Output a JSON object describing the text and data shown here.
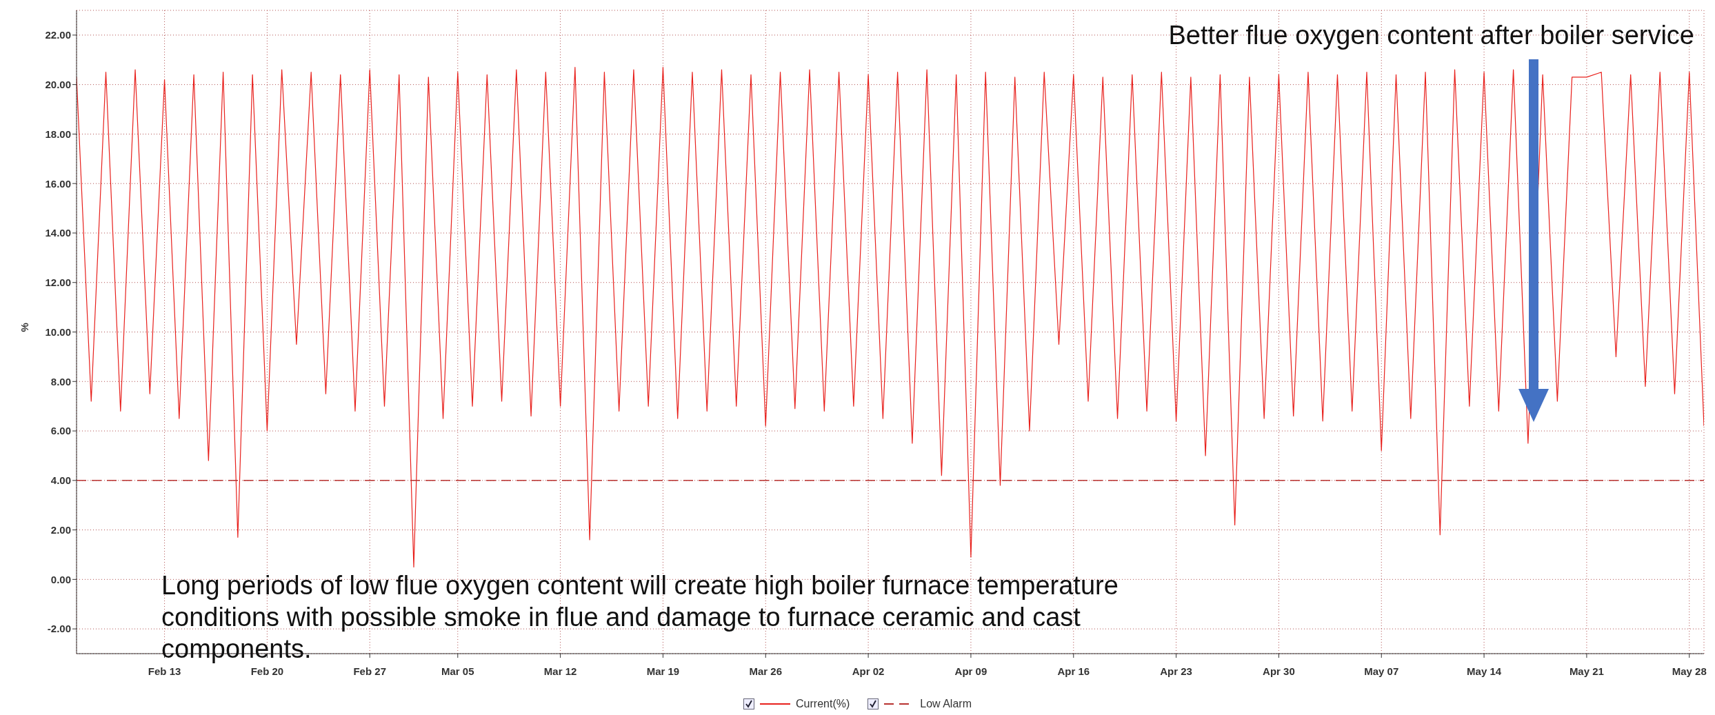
{
  "chart_data": {
    "type": "line",
    "x": [
      "--02-07",
      "--02-08",
      "--02-09",
      "--02-10",
      "--02-11",
      "--02-12",
      "--02-13",
      "--02-14",
      "--02-15",
      "--02-16",
      "--02-17",
      "--02-18",
      "--02-19",
      "--02-20",
      "--02-21",
      "--02-22",
      "--02-23",
      "--02-24",
      "--02-25",
      "--02-26",
      "--02-27",
      "--02-28",
      "--03-01",
      "--03-02",
      "--03-03",
      "--03-04",
      "--03-05",
      "--03-06",
      "--03-07",
      "--03-08",
      "--03-09",
      "--03-10",
      "--03-11",
      "--03-12",
      "--03-13",
      "--03-14",
      "--03-15",
      "--03-16",
      "--03-17",
      "--03-18",
      "--03-19",
      "--03-20",
      "--03-21",
      "--03-22",
      "--03-23",
      "--03-24",
      "--03-25",
      "--03-26",
      "--03-27",
      "--03-28",
      "--03-29",
      "--03-30",
      "--03-31",
      "--04-01",
      "--04-02",
      "--04-03",
      "--04-04",
      "--04-05",
      "--04-06",
      "--04-07",
      "--04-08",
      "--04-09",
      "--04-10",
      "--04-11",
      "--04-12",
      "--04-13",
      "--04-14",
      "--04-15",
      "--04-16",
      "--04-17",
      "--04-18",
      "--04-19",
      "--04-20",
      "--04-21",
      "--04-22",
      "--04-23",
      "--04-24",
      "--04-25",
      "--04-26",
      "--04-27",
      "--04-28",
      "--04-29",
      "--04-30",
      "--05-01",
      "--05-02",
      "--05-03",
      "--05-04",
      "--05-05",
      "--05-06",
      "--05-07",
      "--05-08",
      "--05-09",
      "--05-10",
      "--05-11",
      "--05-12",
      "--05-13",
      "--05-14",
      "--05-15",
      "--05-16",
      "--05-17",
      "--05-18",
      "--05-19",
      "--05-20",
      "--05-21",
      "--05-22",
      "--05-23",
      "--05-24",
      "--05-25",
      "--05-26",
      "--05-27",
      "--05-28",
      "--05-29"
    ],
    "series": [
      {
        "name": "Current(%)",
        "color": "#e8201c",
        "values": [
          20.3,
          7.2,
          20.5,
          6.8,
          20.6,
          7.5,
          20.2,
          6.5,
          20.4,
          4.8,
          20.5,
          1.7,
          20.4,
          6.0,
          20.6,
          9.5,
          20.5,
          7.5,
          20.4,
          6.8,
          20.6,
          7.0,
          20.4,
          0.5,
          20.3,
          6.5,
          20.5,
          7.0,
          20.4,
          7.2,
          20.6,
          6.6,
          20.5,
          7.0,
          20.7,
          1.6,
          20.5,
          6.8,
          20.6,
          7.0,
          20.7,
          6.5,
          20.5,
          6.8,
          20.6,
          7.0,
          20.4,
          6.2,
          20.5,
          6.9,
          20.6,
          6.8,
          20.5,
          7.0,
          20.4,
          6.5,
          20.5,
          5.5,
          20.6,
          4.2,
          20.4,
          0.9,
          20.5,
          3.8,
          20.3,
          6.0,
          20.5,
          9.5,
          20.4,
          7.2,
          20.3,
          6.5,
          20.4,
          6.8,
          20.5,
          6.4,
          20.3,
          5.0,
          20.4,
          2.2,
          20.3,
          6.5,
          20.4,
          6.6,
          20.5,
          6.4,
          20.4,
          6.8,
          20.5,
          5.2,
          20.4,
          6.5,
          20.5,
          1.8,
          20.6,
          7.0,
          20.5,
          6.8,
          20.6,
          5.5,
          20.4,
          7.2,
          20.3,
          20.3,
          20.5,
          9.0,
          20.4,
          7.8,
          20.5,
          7.5,
          20.5,
          6.2
        ]
      },
      {
        "name": "Low Alarm",
        "color": "#b8312f",
        "line_style": "dashed",
        "x": [
          "--02-07",
          "--05-29"
        ],
        "values": [
          4,
          4
        ]
      }
    ],
    "ylabel": "%",
    "xlim": [
      "--02-07",
      "--05-29"
    ],
    "xticks": [
      {
        "value": "--02-13",
        "label": "Feb 13"
      },
      {
        "value": "--02-20",
        "label": "Feb 20"
      },
      {
        "value": "--02-27",
        "label": "Feb 27"
      },
      {
        "value": "--03-05",
        "label": "Mar 05"
      },
      {
        "value": "--03-12",
        "label": "Mar 12"
      },
      {
        "value": "--03-19",
        "label": "Mar 19"
      },
      {
        "value": "--03-26",
        "label": "Mar 26"
      },
      {
        "value": "--04-02",
        "label": "Apr 02"
      },
      {
        "value": "--04-09",
        "label": "Apr 09"
      },
      {
        "value": "--04-16",
        "label": "Apr 16"
      },
      {
        "value": "--04-23",
        "label": "Apr 23"
      },
      {
        "value": "--04-30",
        "label": "Apr 30"
      },
      {
        "value": "--05-07",
        "label": "May 07"
      },
      {
        "value": "--05-14",
        "label": "May 14"
      },
      {
        "value": "--05-21",
        "label": "May 21"
      },
      {
        "value": "--05-28",
        "label": "May 28"
      }
    ],
    "ylim": [
      -3,
      23
    ],
    "yticks": [
      {
        "value": -2,
        "label": "-2.00"
      },
      {
        "value": 0,
        "label": "0.00"
      },
      {
        "value": 2,
        "label": "2.00"
      },
      {
        "value": 4,
        "label": "4.00"
      },
      {
        "value": 6,
        "label": "6.00"
      },
      {
        "value": 8,
        "label": "8.00"
      },
      {
        "value": 10,
        "label": "10.00"
      },
      {
        "value": 12,
        "label": "12.00"
      },
      {
        "value": 14,
        "label": "14.00"
      },
      {
        "value": 16,
        "label": "16.00"
      },
      {
        "value": 18,
        "label": "18.00"
      },
      {
        "value": 20,
        "label": "20.00"
      },
      {
        "value": 22,
        "label": "22.00"
      }
    ],
    "grid": true,
    "legend": "bottom",
    "marker": "none",
    "annotations": [
      "Better flue oxygen content after boiler service",
      "Long periods of low flue oxygen content will create high boiler furnace temperature conditions with possible smoke in flue and damage to furnace ceramic and cast components."
    ]
  }
}
